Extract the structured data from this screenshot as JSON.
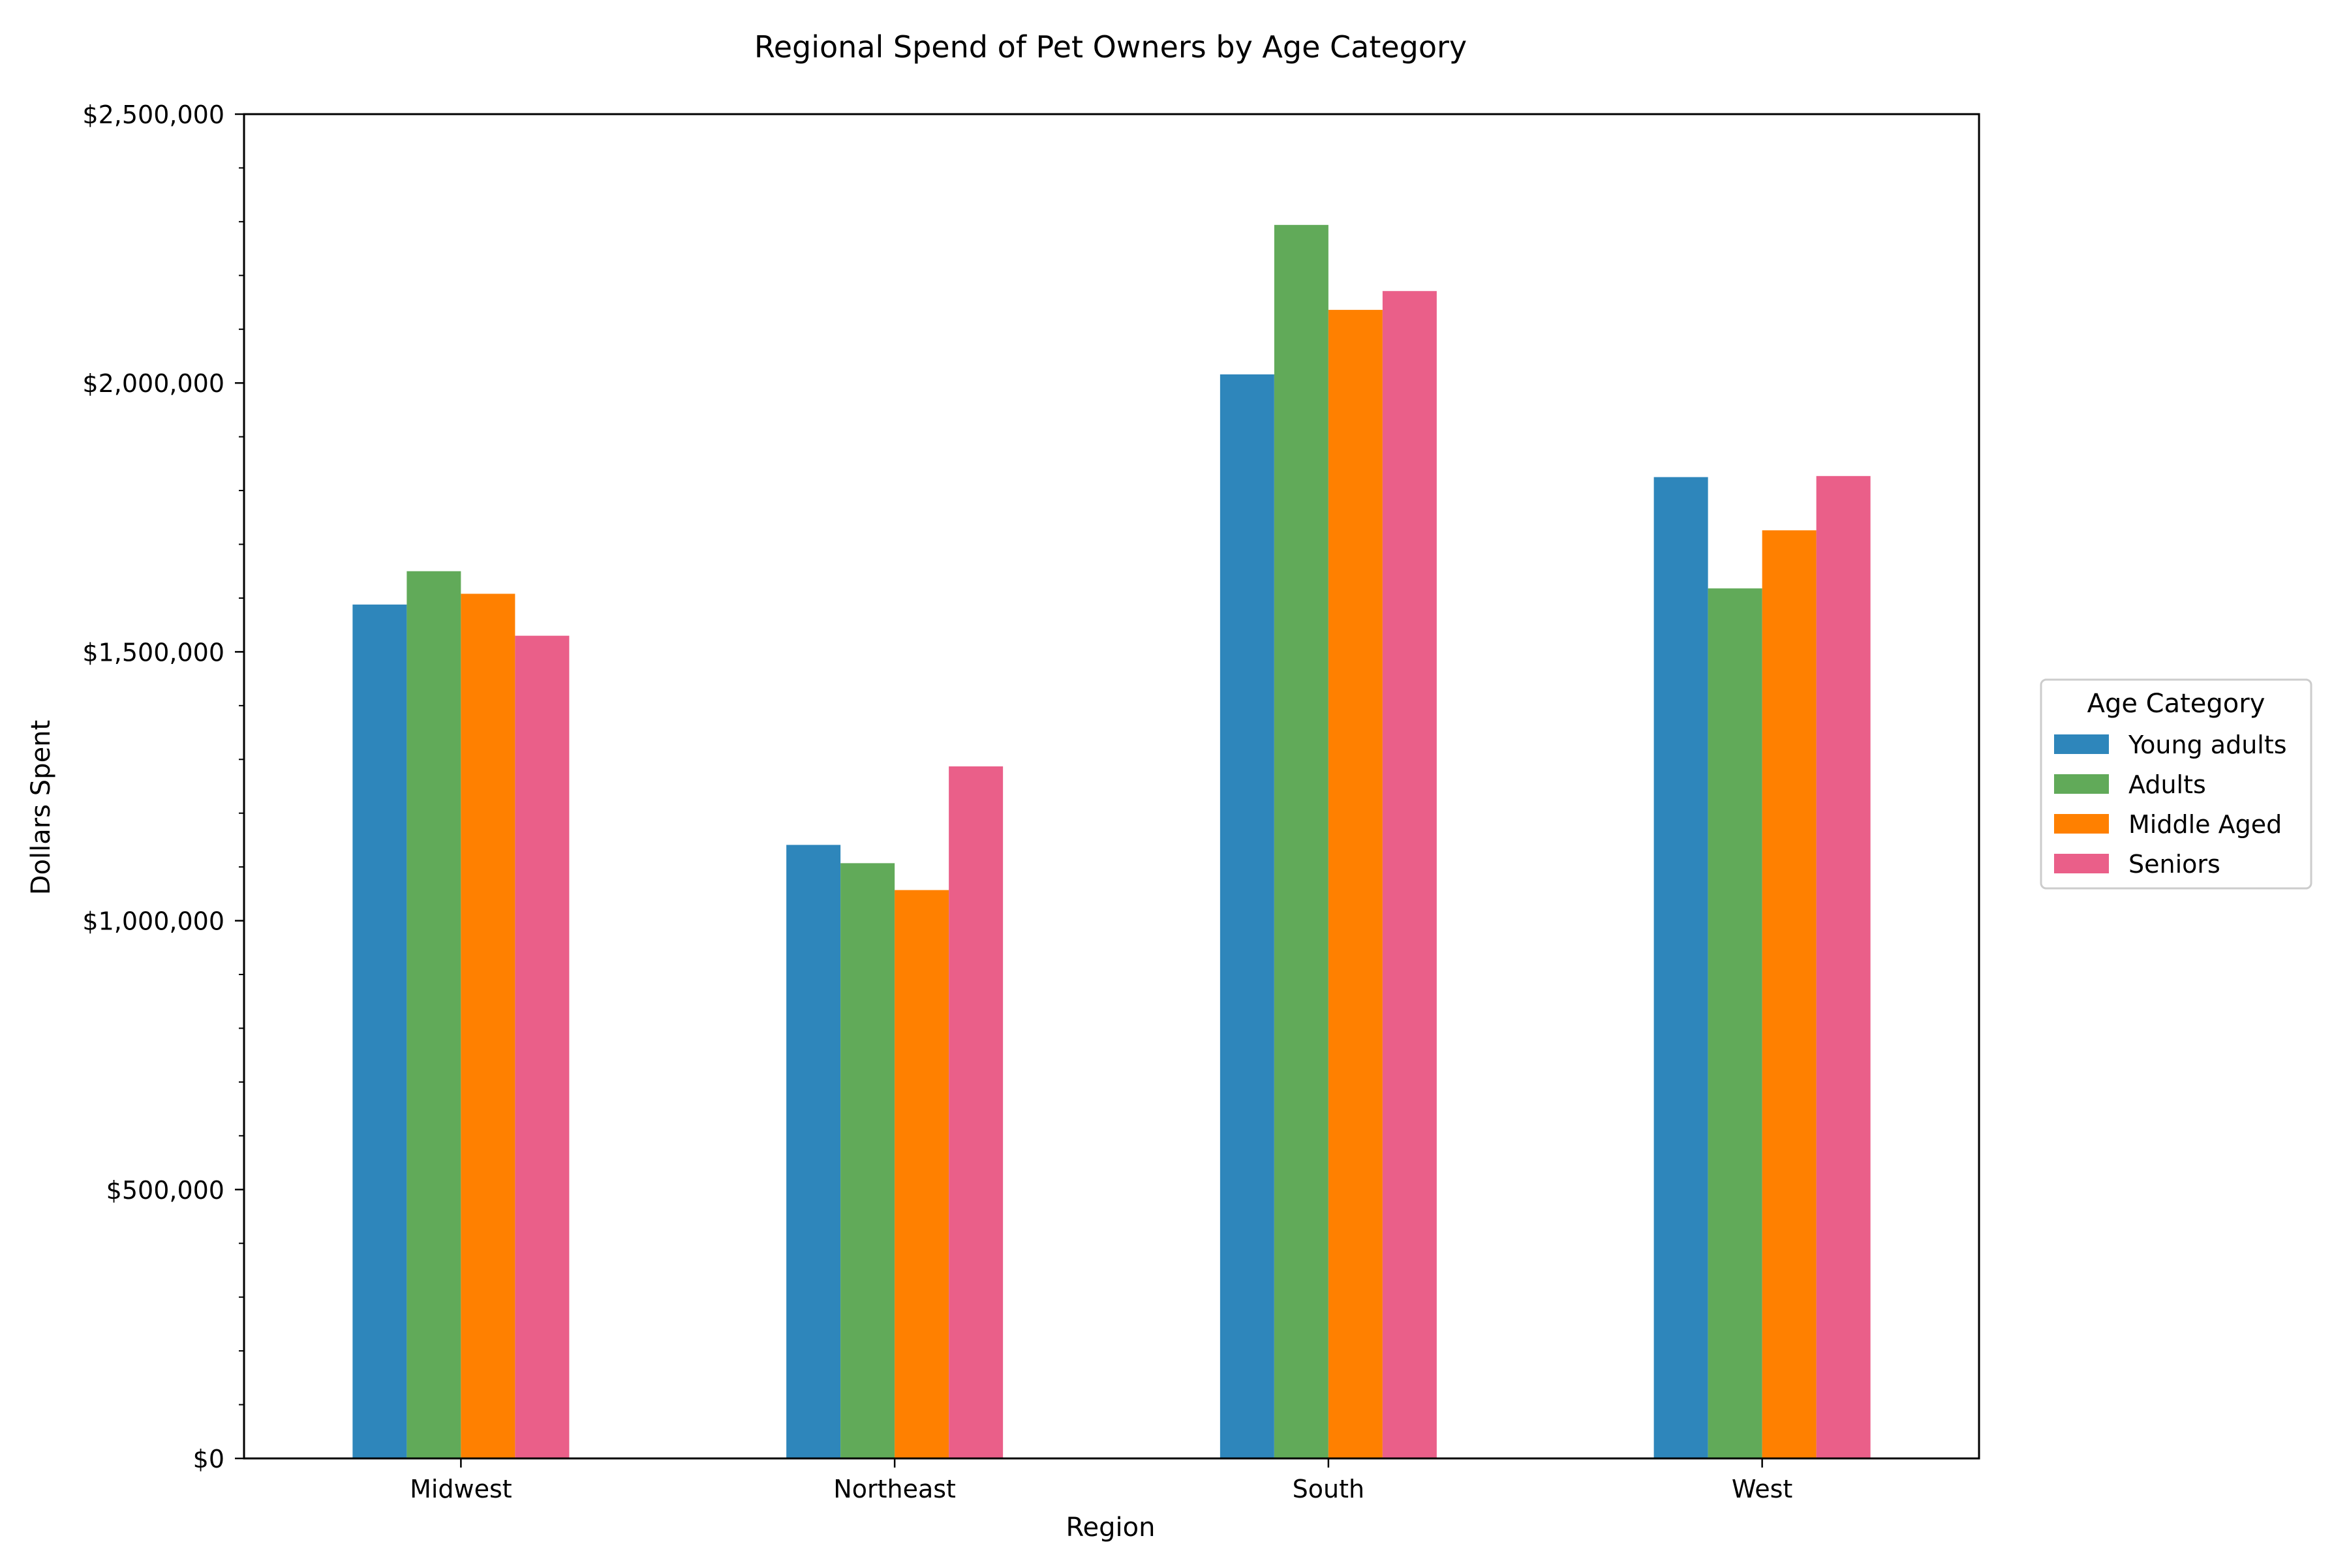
{
  "chart_data": {
    "type": "bar",
    "title": "Regional Spend of Pet Owners by Age Category",
    "xlabel": "Region",
    "ylabel": "Dollars Spent",
    "categories": [
      "Midwest",
      "Northeast",
      "South",
      "West"
    ],
    "ylim": [
      0,
      2500000
    ],
    "yticks": [
      0,
      500000,
      1000000,
      1500000,
      2000000,
      2500000
    ],
    "ytick_labels": [
      "$0",
      "$500,000",
      "$1,000,000",
      "$1,500,000",
      "$2,000,000",
      "$2,500,000"
    ],
    "grid": false,
    "legend": {
      "title": "Age Category",
      "placement": "center-right outside"
    },
    "series": [
      {
        "name": "Young adults",
        "color": "#2e86bb",
        "values": [
          1588000,
          1141000,
          2016000,
          1825000
        ]
      },
      {
        "name": "Adults",
        "color": "#61aa59",
        "values": [
          1650000,
          1107000,
          2294000,
          1618000
        ]
      },
      {
        "name": "Middle Aged",
        "color": "#ff8000",
        "values": [
          1608000,
          1057000,
          2136000,
          1726000
        ]
      },
      {
        "name": "Seniors",
        "color": "#ea5f89",
        "values": [
          1530000,
          1287000,
          2171000,
          1827000
        ]
      }
    ]
  }
}
